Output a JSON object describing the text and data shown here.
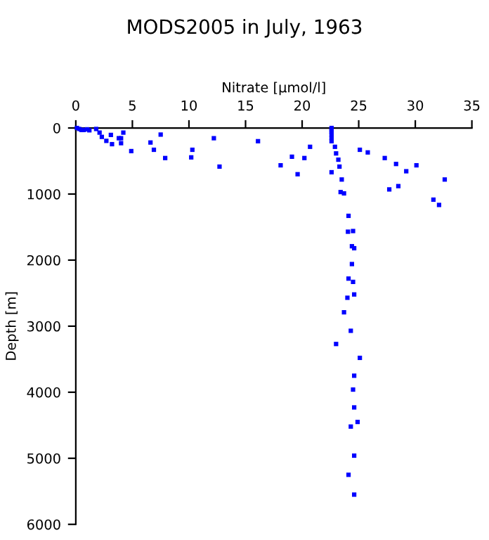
{
  "chart_data": {
    "type": "scatter",
    "title": "MODS2005 in July, 1963",
    "xlabel": "Nitrate [µmol/l]",
    "ylabel": "Depth [m]",
    "x": [
      0.1,
      0.3,
      0.5,
      0.7,
      1.0,
      1.2,
      1.8,
      2.1,
      2.3,
      2.7,
      3.1,
      3.2,
      3.8,
      4.0,
      4.0,
      4.2,
      4.9,
      6.6,
      6.9,
      7.5,
      7.9,
      10.3,
      10.2,
      12.2,
      12.7,
      16.1,
      18.1,
      19.1,
      19.6,
      20.2,
      20.7,
      22.6,
      22.6,
      22.6,
      22.6,
      22.6,
      22.6,
      22.6,
      22.9,
      23.0,
      23.2,
      23.3,
      23.5,
      23.4,
      23.7,
      25.1,
      25.8,
      27.3,
      27.7,
      28.3,
      28.5,
      29.2,
      30.1,
      31.6,
      32.1,
      32.6,
      24.1,
      24.05,
      24.5,
      24.4,
      24.6,
      24.4,
      24.1,
      24.5,
      24.6,
      24.0,
      23.7,
      24.3,
      23.0,
      25.1,
      24.6,
      24.5,
      24.6,
      24.9,
      24.3,
      24.6,
      24.1,
      24.6
    ],
    "series": [
      {
        "color": "#0000ff",
        "values": [
          0,
          15,
          30,
          30,
          20,
          35,
          15,
          70,
          135,
          195,
          105,
          245,
          155,
          155,
          230,
          70,
          350,
          220,
          330,
          100,
          455,
          330,
          445,
          155,
          585,
          200,
          565,
          435,
          700,
          455,
          285,
          0,
          30,
          60,
          100,
          150,
          200,
          670,
          285,
          385,
          480,
          585,
          780,
          970,
          990,
          330,
          370,
          455,
          930,
          545,
          880,
          655,
          565,
          1085,
          1165,
          780,
          1330,
          1570,
          1560,
          1790,
          1820,
          2060,
          2280,
          2330,
          2520,
          2570,
          2790,
          3070,
          3270,
          3480,
          3750,
          3960,
          4230,
          4450,
          4520,
          4960,
          5250,
          5550
        ]
      }
    ],
    "xlim": [
      0,
      35
    ],
    "xticks": [
      0,
      5,
      10,
      15,
      20,
      25,
      30,
      35
    ],
    "ylim": [
      6000,
      0
    ],
    "yticks": [
      0,
      1000,
      2000,
      3000,
      4000,
      5000,
      6000
    ],
    "marker": "square",
    "grid": false,
    "legend": false
  }
}
